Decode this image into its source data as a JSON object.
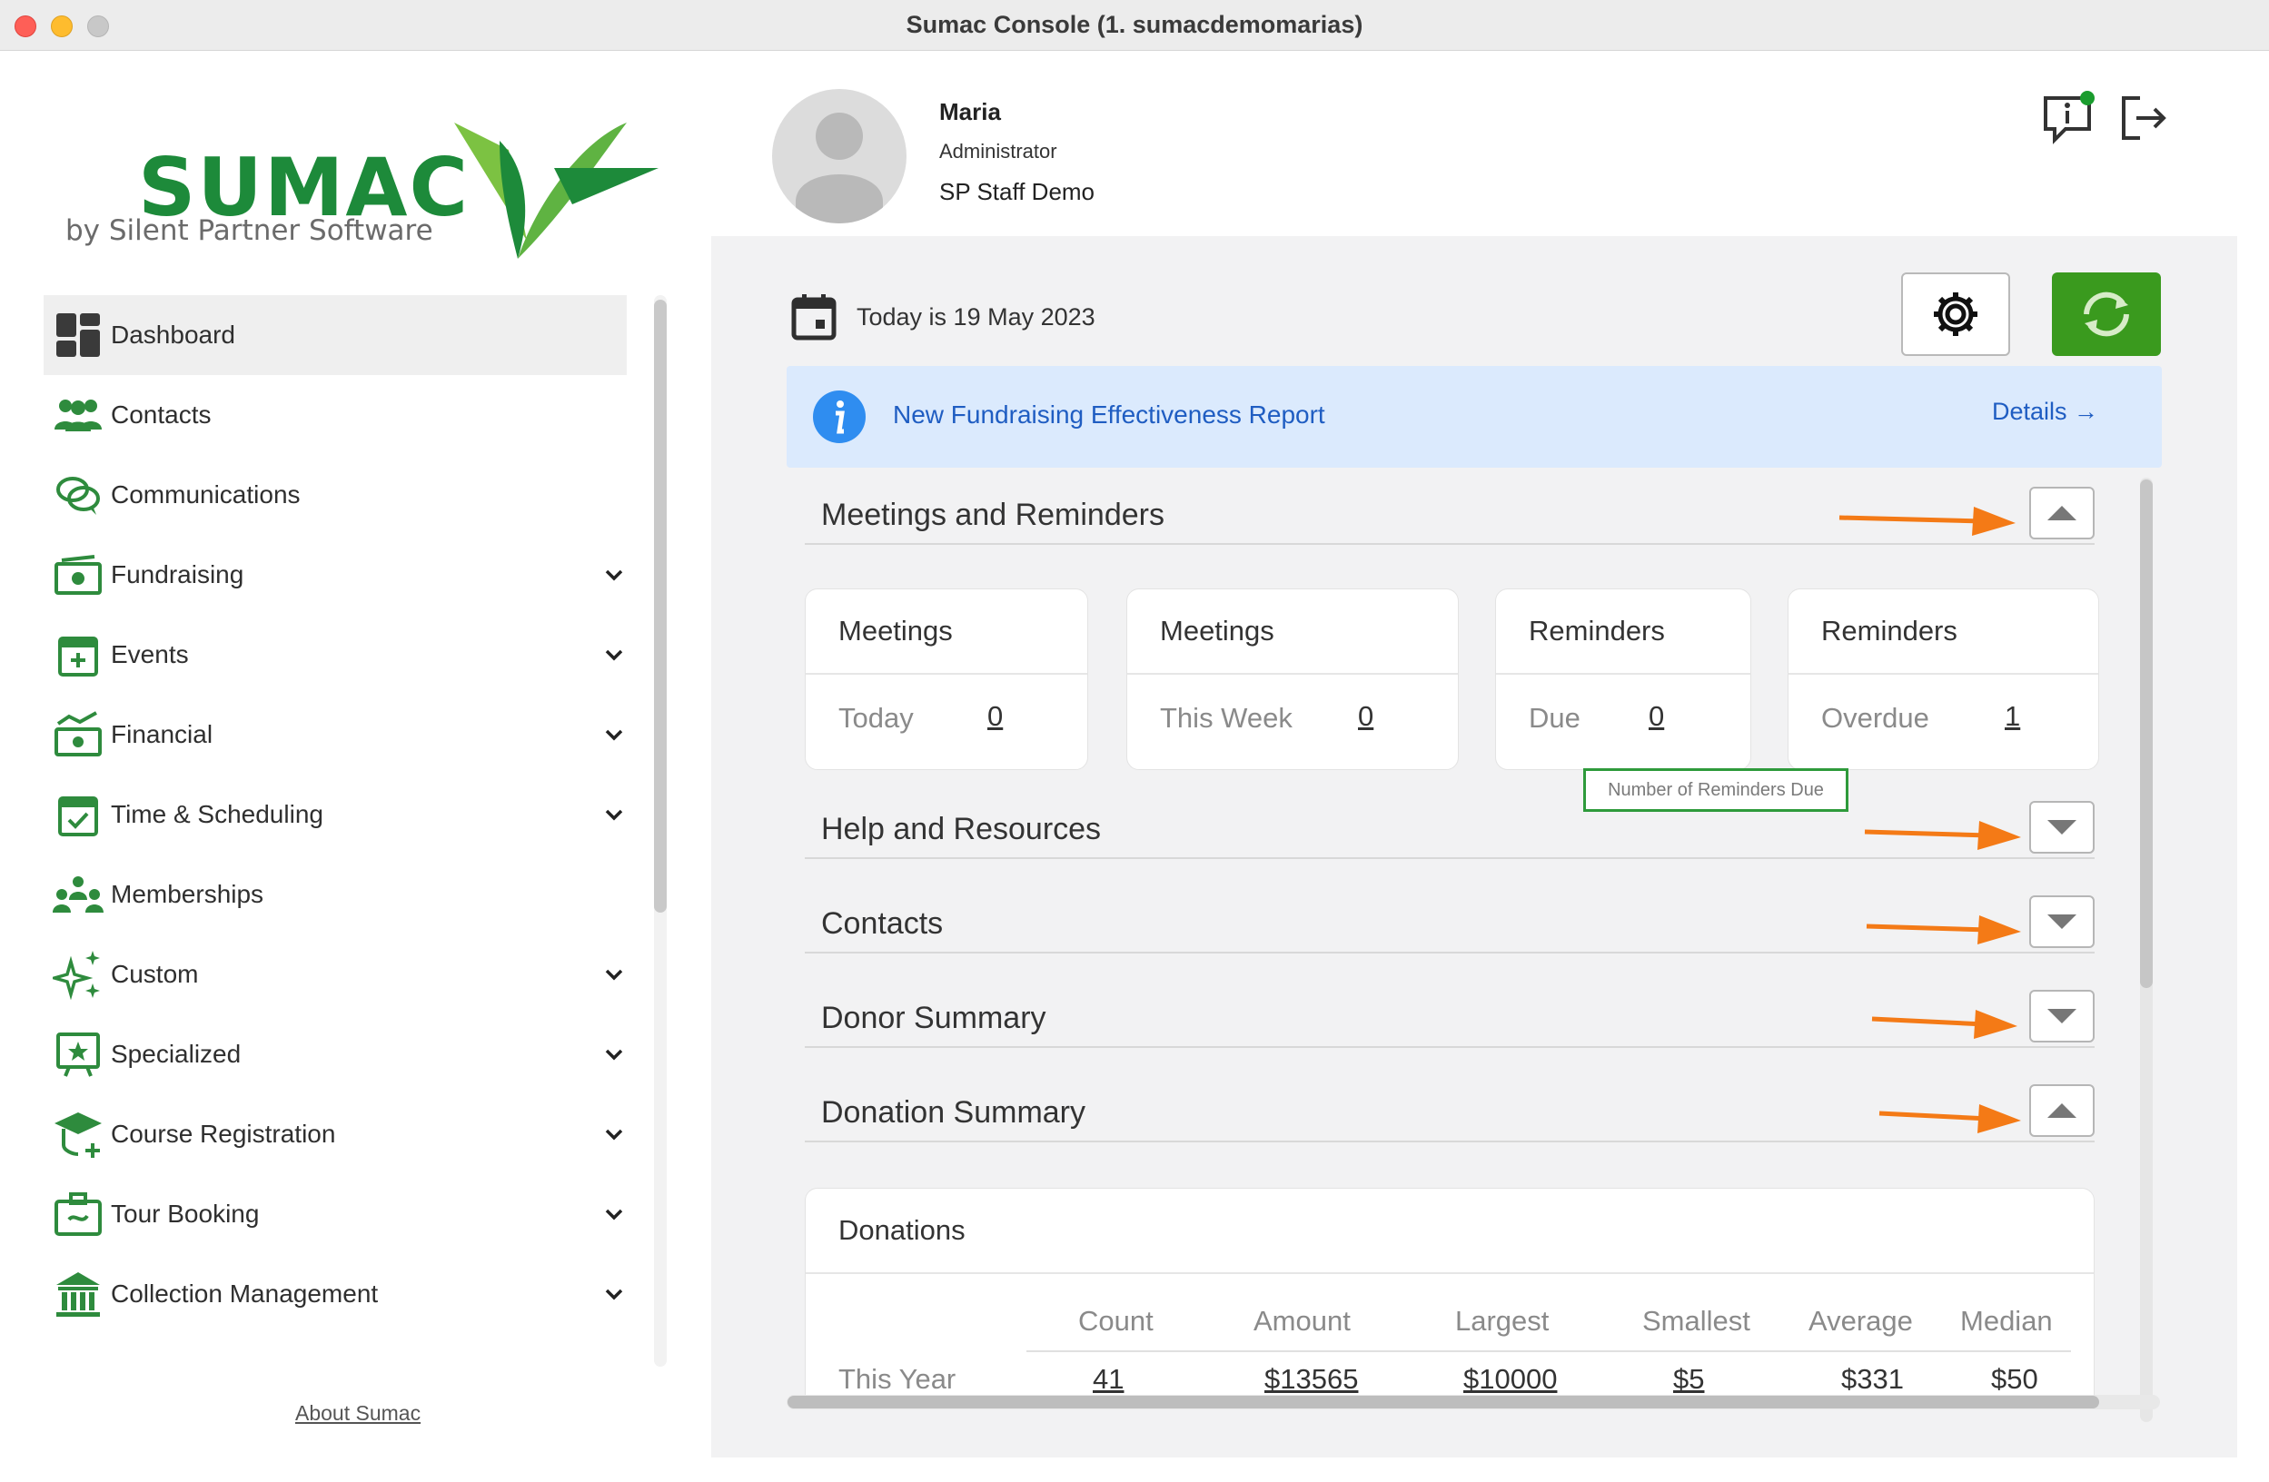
{
  "window": {
    "title": "Sumac Console (1. sumacdemomarias)"
  },
  "logo": {
    "name": "SUMAC",
    "tagline": "by Silent Partner Software"
  },
  "sidebar": {
    "items": [
      {
        "label": "Dashboard",
        "icon": "dashboard-icon",
        "expandable": false,
        "active": true
      },
      {
        "label": "Contacts",
        "icon": "people-icon",
        "expandable": false
      },
      {
        "label": "Communications",
        "icon": "chat-bubbles-icon",
        "expandable": false
      },
      {
        "label": "Fundraising",
        "icon": "cash-icon",
        "expandable": true
      },
      {
        "label": "Events",
        "icon": "calendar-plus-icon",
        "expandable": true
      },
      {
        "label": "Financial",
        "icon": "chart-cash-icon",
        "expandable": true
      },
      {
        "label": "Time & Scheduling",
        "icon": "calendar-check-icon",
        "expandable": true
      },
      {
        "label": "Memberships",
        "icon": "group-icon",
        "expandable": false
      },
      {
        "label": "Custom",
        "icon": "sparkle-icon",
        "expandable": true
      },
      {
        "label": "Specialized",
        "icon": "star-board-icon",
        "expandable": true
      },
      {
        "label": "Course Registration",
        "icon": "graduation-cap-icon",
        "expandable": true
      },
      {
        "label": "Tour Booking",
        "icon": "suitcase-icon",
        "expandable": true
      },
      {
        "label": "Collection Management",
        "icon": "museum-icon",
        "expandable": true
      }
    ],
    "about_link": "About Sumac"
  },
  "user": {
    "name": "Maria",
    "role": "Administrator",
    "organization": "SP Staff Demo"
  },
  "header": {
    "notification_icon": "info-chat-icon",
    "logout_icon": "logout-icon"
  },
  "dashboard": {
    "date_text": "Today is 19 May 2023",
    "banner": {
      "text": "New Fundraising Effectiveness Report",
      "link": "Details →"
    },
    "sections": {
      "meetings": "Meetings and Reminders",
      "help": "Help and Resources",
      "contacts": "Contacts",
      "donor": "Donor Summary",
      "donation": "Donation Summary"
    },
    "cards": [
      {
        "title": "Meetings",
        "label": "Today",
        "value": "0"
      },
      {
        "title": "Meetings",
        "label": "This Week",
        "value": "0"
      },
      {
        "title": "Reminders",
        "label": "Due",
        "value": "0"
      },
      {
        "title": "Reminders",
        "label": "Overdue",
        "value": "1"
      }
    ],
    "tooltip": "Number of Reminders Due",
    "donations": {
      "title": "Donations",
      "columns": [
        "Count",
        "Amount",
        "Largest",
        "Smallest",
        "Average",
        "Median"
      ],
      "rows": [
        {
          "label": "This Year",
          "values": [
            "41",
            "$13565",
            "$10000",
            "$5",
            "$331",
            "$50"
          ]
        }
      ]
    }
  },
  "colors": {
    "brand_green": "#1d8a3a",
    "refresh_green": "#3a9a1e",
    "annotation_orange": "#f47a16",
    "banner_blue": "#dbeafd",
    "link_blue": "#1f5dc2"
  }
}
